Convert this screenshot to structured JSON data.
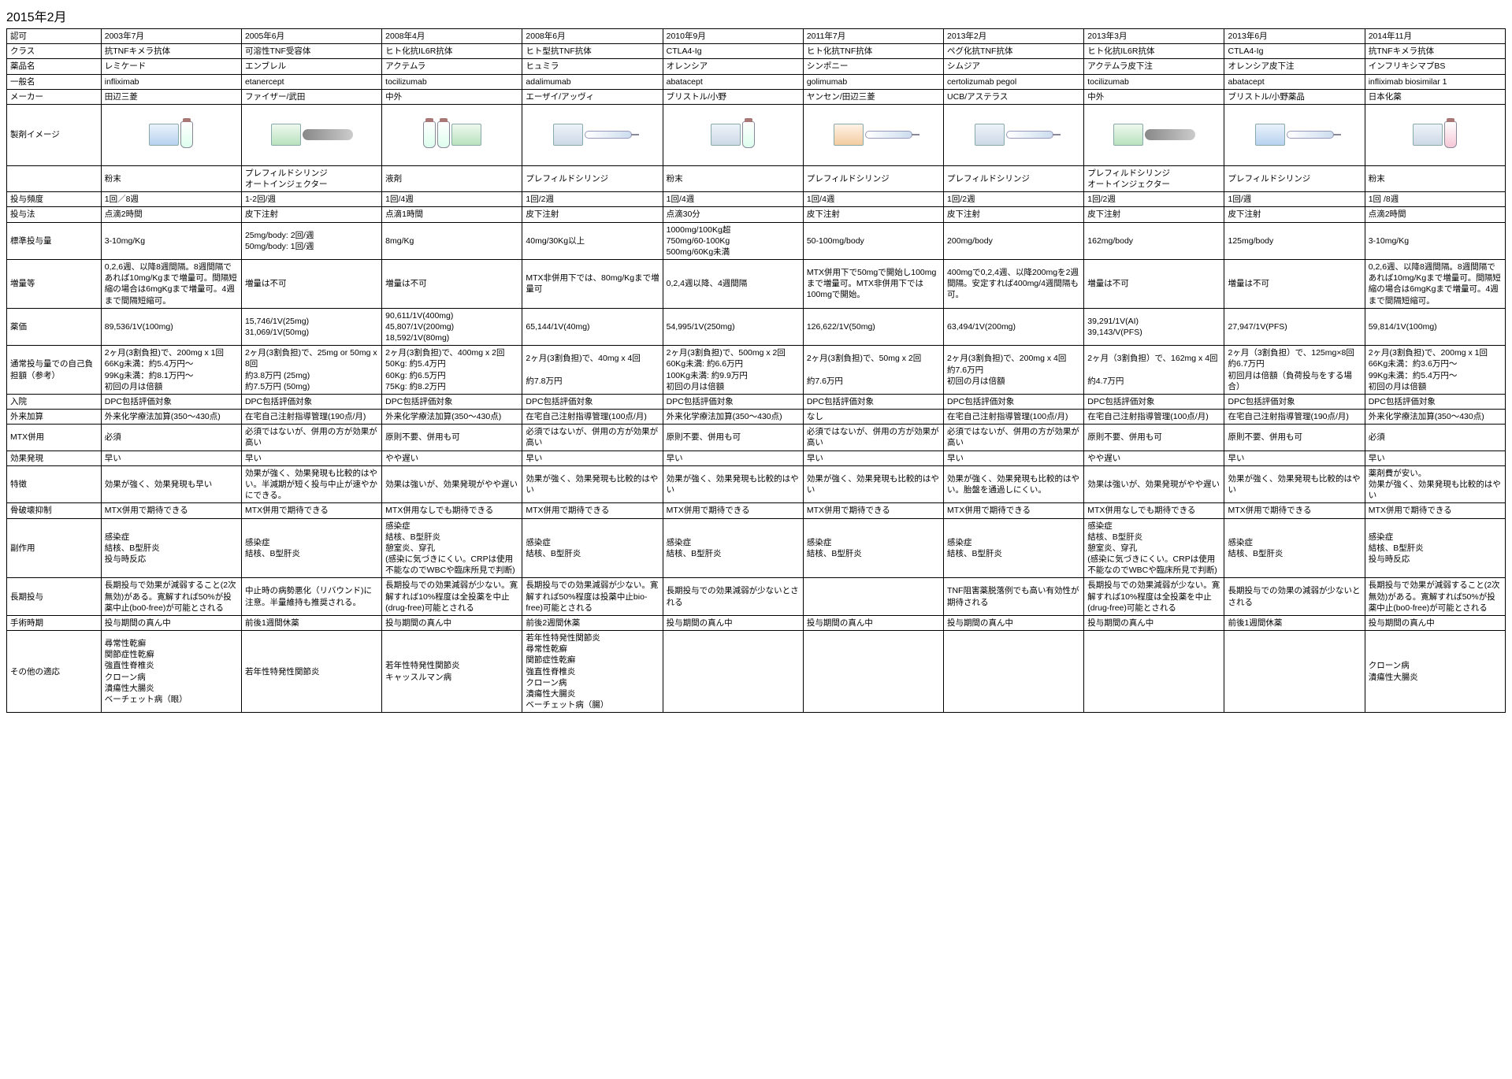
{
  "title": "2015年2月",
  "row_labels": {
    "approval": "認可",
    "class": "クラス",
    "drug_name": "薬品名",
    "generic": "一般名",
    "maker": "メーカー",
    "image": "製剤イメージ",
    "form": "",
    "freq": "投与頻度",
    "method": "投与法",
    "dose": "標準投与量",
    "increase": "増量等",
    "price": "薬価",
    "burden": "通常投与量での自己負担額（参考）",
    "inpatient": "入院",
    "outpatient": "外来加算",
    "mtx": "MTX併用",
    "onset": "効果発現",
    "feature": "特徴",
    "bone": "骨破壊抑制",
    "sideeffect": "副作用",
    "longterm": "長期投与",
    "surgery": "手術時期",
    "other": "その他の適応"
  },
  "drugs": [
    {
      "approval": "2003年7月",
      "class": "抗TNFキメラ抗体",
      "name": "レミケード",
      "generic": "infliximab",
      "maker": "田辺三菱",
      "form": "粉末",
      "freq": "1回／8週",
      "method": "点滴2時間",
      "dose": "3-10mg/Kg",
      "increase": "0,2,6週、以降8週間隔。8週間隔であれば10mg/Kgまで増量可。間隔短縮の場合は6mgKgまで増量可。4週まで間隔短縮可。",
      "price": "89,536/1V(100mg)",
      "burden": "2ヶ月(3割負担)で、200mg x 1回\n66Kg未満：約5.4万円～\n99Kg未満：約8.1万円～\n初回の月は倍額",
      "inpatient": "DPC包括評価対象",
      "outpatient": "外来化学療法加算(350～430点)",
      "mtx": "必須",
      "onset": "早い",
      "feature": "効果が強く、効果発現も早い",
      "bone": "MTX併用で期待できる",
      "sideeffect": "感染症\n結核、B型肝炎\n投与時反応",
      "longterm": "長期投与で効果が減弱すること(2次無効)がある。寛解すれば50%が投薬中止(bo0-free)が可能とされる",
      "surgery": "投与期間の真ん中",
      "other": "尋常性乾癬\n関節症性乾癬\n強直性脊椎炎\nクローン病\n潰瘍性大腸炎\nベーチェット病（眼）"
    },
    {
      "approval": "2005年6月",
      "class": "可溶性TNF受容体",
      "name": "エンブレル",
      "generic": "etanercept",
      "maker": "ファイザー/武田",
      "form": "プレフィルドシリンジ\nオートインジェクター",
      "freq": "1-2回/週",
      "method": "皮下注射",
      "dose": "25mg/body: 2回/週\n50mg/body: 1回/週",
      "increase": "増量は不可",
      "price": "15,746/1V(25mg)\n31,069/1V(50mg)",
      "burden": "2ヶ月(3割負担)で、25mg or 50mg x 8回\n約3.8万円 (25mg)\n約7.5万円 (50mg)",
      "inpatient": "DPC包括評価対象",
      "outpatient": "在宅自己注射指導管理(190点/月)",
      "mtx": "必須ではないが、併用の方が効果が高い",
      "onset": "早い",
      "feature": "効果が強く、効果発現も比較的はやい。半減期が短く投与中止が速やかにできる。",
      "bone": "MTX併用で期待できる",
      "sideeffect": "感染症\n結核、B型肝炎",
      "longterm": "中止時の病勢悪化（リバウンド)に注意。半量維持も推奨される。",
      "surgery": "前後1週間休薬",
      "other": "若年性特発性関節炎"
    },
    {
      "approval": "2008年4月",
      "class": "ヒト化抗IL6R抗体",
      "name": "アクテムラ",
      "generic": "tocilizumab",
      "maker": "中外",
      "form": "液剤",
      "freq": "1回/4週",
      "method": "点滴1時間",
      "dose": "8mg/Kg",
      "increase": "増量は不可",
      "price": "90,611/1V(400mg)\n45,807/1V(200mg)\n18,592/1V(80mg)",
      "burden": "2ヶ月(3割負担)で、400mg x 2回\n50Kg: 約5.4万円\n60Kg: 約6.5万円\n75Kg: 約8.2万円",
      "inpatient": "DPC包括評価対象",
      "outpatient": "外来化学療法加算(350～430点)",
      "mtx": "原則不要、併用も可",
      "onset": "やや遅い",
      "feature": "効果は強いが、効果発現がやや遅い",
      "bone": "MTX併用なしでも期待できる",
      "sideeffect": "感染症\n結核、B型肝炎\n憩室炎、穿孔\n(感染に気づきにくい。CRPは使用不能なのでWBCや臨床所見で判断)",
      "longterm": "長期投与での効果減弱が少ない。寛解すれば10%程度は全投薬を中止(drug-free)可能とされる",
      "surgery": "投与期間の真ん中",
      "other": "若年性特発性関節炎\nキャッスルマン病"
    },
    {
      "approval": "2008年6月",
      "class": "ヒト型抗TNF抗体",
      "name": "ヒュミラ",
      "generic": "adalimumab",
      "maker": "エーザイ/アッヴィ",
      "form": "プレフィルドシリンジ",
      "freq": "1回/2週",
      "method": "皮下注射",
      "dose": "40mg/30Kg以上",
      "increase": "MTX非併用下では、80mg/Kgまで増量可",
      "price": "65,144/1V(40mg)",
      "burden": "2ヶ月(3割負担)で、40mg x 4回\n\n約7.8万円",
      "inpatient": "DPC包括評価対象",
      "outpatient": "在宅自己注射指導管理(100点/月)",
      "mtx": "必須ではないが、併用の方が効果が高い",
      "onset": "早い",
      "feature": "効果が強く、効果発現も比較的はやい",
      "bone": "MTX併用で期待できる",
      "sideeffect": "感染症\n結核、B型肝炎",
      "longterm": "長期投与での効果減弱が少ない。寛解すれば50%程度は投薬中止bio-free)可能とされる",
      "surgery": "前後2週間休薬",
      "other": "若年性特発性関節炎\n尋常性乾癬\n関節症性乾癬\n強直性脊椎炎\nクローン病\n潰瘍性大腸炎\nベーチェット病（腸）"
    },
    {
      "approval": "2010年9月",
      "class": "CTLA4-Ig",
      "name": "オレンシア",
      "generic": "abatacept",
      "maker": "ブリストル/小野",
      "form": "粉末",
      "freq": "1回/4週",
      "method": "点滴30分",
      "dose": "1000mg/100Kg超\n750mg/60-100Kg\n500mg/60Kg未満",
      "increase": "0,2,4週以降、4週間隔",
      "price": "54,995/1V(250mg)",
      "burden": "2ヶ月(3割負担)で、500mg x 2回\n60Kg未満: 約6.6万円\n100Kg未満: 約9.9万円\n初回の月は倍額",
      "inpatient": "DPC包括評価対象",
      "outpatient": "外来化学療法加算(350～430点)",
      "mtx": "原則不要、併用も可",
      "onset": "早い",
      "feature": "効果が強く、効果発現も比較的はやい",
      "bone": "MTX併用で期待できる",
      "sideeffect": "感染症\n結核、B型肝炎",
      "longterm": "長期投与での効果減弱が少ないとされる",
      "surgery": "投与期間の真ん中",
      "other": ""
    },
    {
      "approval": "2011年7月",
      "class": "ヒト化抗TNF抗体",
      "name": "シンポニー",
      "generic": "golimumab",
      "maker": "ヤンセン/田辺三菱",
      "form": "プレフィルドシリンジ",
      "freq": "1回/4週",
      "method": "皮下注射",
      "dose": "50-100mg/body",
      "increase": "MTX併用下で50mgで開始し100mgまで増量可。MTX非併用下では100mgで開始。",
      "price": "126,622/1V(50mg)",
      "burden": "2ヶ月(3割負担)で、50mg x 2回\n\n約7.6万円",
      "inpatient": "DPC包括評価対象",
      "outpatient": "なし",
      "mtx": "必須ではないが、併用の方が効果が高い",
      "onset": "早い",
      "feature": "効果が強く、効果発現も比較的はやい",
      "bone": "MTX併用で期待できる",
      "sideeffect": "感染症\n結核、B型肝炎",
      "longterm": "",
      "surgery": "投与期間の真ん中",
      "other": ""
    },
    {
      "approval": "2013年2月",
      "class": "ペグ化抗TNF抗体",
      "name": "シムジア",
      "generic": "certolizumab pegol",
      "maker": "UCB/アステラス",
      "form": "プレフィルドシリンジ",
      "freq": "1回/2週",
      "method": "皮下注射",
      "dose": "200mg/body",
      "increase": "400mgで0,2,4週、以降200mgを2週間隔。安定すれば400mg/4週間隔も可。",
      "price": "63,494/1V(200mg)",
      "burden": "2ヶ月(3割負担)で、200mg x 4回\n約7.6万円\n初回の月は倍額",
      "inpatient": "DPC包括評価対象",
      "outpatient": "在宅自己注射指導管理(100点/月)",
      "mtx": "必須ではないが、併用の方が効果が高い",
      "onset": "早い",
      "feature": "効果が強く、効果発現も比較的はやい。胎盤を通過しにくい。",
      "bone": "MTX併用で期待できる",
      "sideeffect": "感染症\n結核、B型肝炎",
      "longterm": "TNF阻害薬脱落例でも高い有効性が期待される",
      "surgery": "投与期間の真ん中",
      "other": ""
    },
    {
      "approval": "2013年3月",
      "class": "ヒト化抗IL6R抗体",
      "name": "アクテムラ皮下注",
      "generic": "tocilizumab",
      "maker": "中外",
      "form": "プレフィルドシリンジ\nオートインジェクター",
      "freq": "1回/2週",
      "method": "皮下注射",
      "dose": "162mg/body",
      "increase": "増量は不可",
      "price": "39,291/1V(AI)\n39,143/V(PFS)",
      "burden": "2ヶ月（3割負担）で、162mg x 4回\n\n約4.7万円",
      "inpatient": "DPC包括評価対象",
      "outpatient": "在宅自己注射指導管理(100点/月)",
      "mtx": "原則不要、併用も可",
      "onset": "やや遅い",
      "feature": "効果は強いが、効果発現がやや遅い",
      "bone": "MTX併用なしでも期待できる",
      "sideeffect": "感染症\n結核、B型肝炎\n憩室炎、穿孔\n(感染に気づきにくい。CRPは使用不能なのでWBCや臨床所見で判断)",
      "longterm": "長期投与での効果減弱が少ない。寛解すれば10%程度は全投薬を中止(drug-free)可能とされる",
      "surgery": "投与期間の真ん中",
      "other": ""
    },
    {
      "approval": "2013年6月",
      "class": "CTLA4-Ig",
      "name": "オレンシア皮下注",
      "generic": "abatacept",
      "maker": "ブリストル/小野薬品",
      "form": "プレフィルドシリンジ",
      "freq": "1回/週",
      "method": "皮下注射",
      "dose": "125mg/body",
      "increase": "増量は不可",
      "price": "27,947/1V(PFS)",
      "burden": "2ヶ月（3割負担）で、125mg×8回\n約6.7万円\n初回月は倍額（負荷投与をする場合）",
      "inpatient": "DPC包括評価対象",
      "outpatient": "在宅自己注射指導管理(190点/月)",
      "mtx": "原則不要、併用も可",
      "onset": "早い",
      "feature": "効果が強く、効果発現も比較的はやい",
      "bone": "MTX併用で期待できる",
      "sideeffect": "感染症\n結核、B型肝炎",
      "longterm": "長期投与での効果の減弱が少ないとされる",
      "surgery": "前後1週間休薬",
      "other": ""
    },
    {
      "approval": "2014年11月",
      "class": "抗TNFキメラ抗体",
      "name": "インフリキシマブBS",
      "generic": "infliximab biosimilar 1",
      "maker": "日本化薬",
      "form": "粉末",
      "freq": "1回 /8週",
      "method": "点滴2時間",
      "dose": "3-10mg/Kg",
      "increase": "0,2,6週、以降8週間隔。8週間隔であれば10mg/Kgまで増量可。間隔短縮の場合は6mgKgまで増量可。4週まで間隔短縮可。",
      "price": "59,814/1V(100mg)",
      "burden": "2ヶ月(3割負担)で、200mg x 1回\n66Kg未満：約3.6万円～\n99Kg未満：約5.4万円～\n初回の月は倍額",
      "inpatient": "DPC包括評価対象",
      "outpatient": "外来化学療法加算(350～430点)",
      "mtx": "必須",
      "onset": "早い",
      "feature": "薬剤費が安い。\n効果が強く、効果発現も比較的はやい",
      "bone": "MTX併用で期待できる",
      "sideeffect": "感染症\n結核、B型肝炎\n投与時反応",
      "longterm": "長期投与で効果が減弱すること(2次無効)がある。寛解すれば50%が投薬中止(bo0-free)が可能とされる",
      "surgery": "投与期間の真ん中",
      "other": "クローン病\n潰瘍性大腸炎"
    }
  ],
  "img_styles": [
    "blue",
    "green",
    "green",
    "",
    "",
    "orange",
    "",
    "green",
    "blue",
    "pink"
  ]
}
